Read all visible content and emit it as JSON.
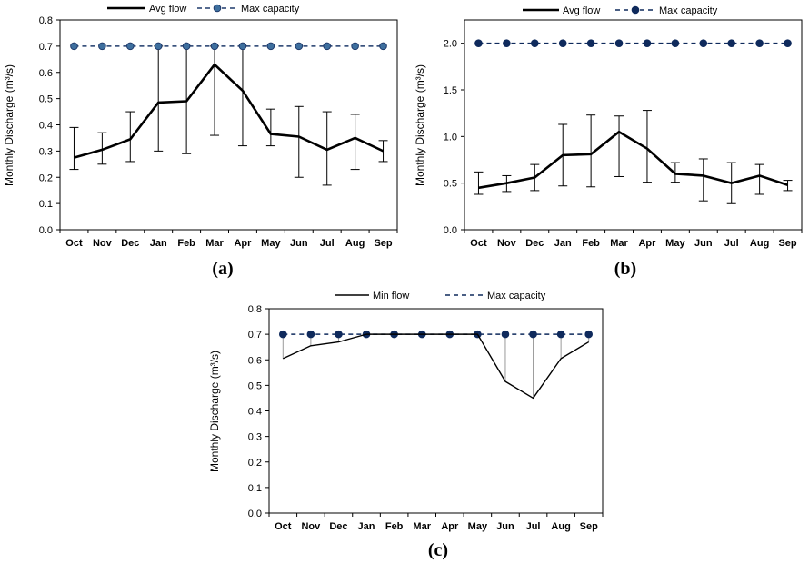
{
  "chart_data": [
    {
      "panel_label": "(a)",
      "type": "line",
      "ylabel": "Monthly Discharge (m³/s)",
      "ylim": [
        0,
        0.8
      ],
      "yticks": [
        0.0,
        0.1,
        0.2,
        0.3,
        0.4,
        0.5,
        0.6,
        0.7,
        0.8
      ],
      "ytick_labels": [
        "0.0",
        "0.1",
        "0.2",
        "0.3",
        "0.4",
        "0.5",
        "0.6",
        "0.7",
        "0.8"
      ],
      "categories": [
        "Oct",
        "Nov",
        "Dec",
        "Jan",
        "Feb",
        "Mar",
        "Apr",
        "May",
        "Jun",
        "Jul",
        "Aug",
        "Sep"
      ],
      "legend_position": "top",
      "grid": false,
      "series": [
        {
          "name": "Avg flow",
          "style": "solid-thick",
          "values": [
            0.275,
            0.305,
            0.345,
            0.485,
            0.49,
            0.63,
            0.53,
            0.365,
            0.355,
            0.305,
            0.35,
            0.3
          ],
          "err_low": [
            0.23,
            0.25,
            0.26,
            0.3,
            0.29,
            0.36,
            0.32,
            0.32,
            0.2,
            0.17,
            0.23,
            0.26
          ],
          "err_high": [
            0.39,
            0.37,
            0.45,
            0.7,
            0.7,
            0.7,
            0.7,
            0.46,
            0.47,
            0.45,
            0.44,
            0.34
          ]
        },
        {
          "name": "Max capacity",
          "style": "dashed-markers",
          "values": [
            0.7,
            0.7,
            0.7,
            0.7,
            0.7,
            0.7,
            0.7,
            0.7,
            0.7,
            0.7,
            0.7,
            0.7
          ]
        }
      ],
      "colors": {
        "line": "#000000",
        "capacity": "#1f3a6b",
        "marker_fill": "#3e6f9e"
      }
    },
    {
      "panel_label": "(b)",
      "type": "line",
      "ylabel": "Monthly Discharge (m³/s)",
      "ylim": [
        0,
        2.25
      ],
      "yticks": [
        0.0,
        0.5,
        1.0,
        1.5,
        2.0
      ],
      "ytick_labels": [
        "0.0",
        "0.5",
        "1.0",
        "1.5",
        "2.0"
      ],
      "categories": [
        "Oct",
        "Nov",
        "Dec",
        "Jan",
        "Feb",
        "Mar",
        "Apr",
        "May",
        "Jun",
        "Jul",
        "Aug",
        "Sep"
      ],
      "legend_position": "top",
      "grid": false,
      "series": [
        {
          "name": "Avg flow",
          "style": "solid-thick",
          "values": [
            0.45,
            0.5,
            0.56,
            0.8,
            0.81,
            1.05,
            0.87,
            0.6,
            0.58,
            0.5,
            0.58,
            0.48
          ],
          "err_low": [
            0.38,
            0.41,
            0.42,
            0.47,
            0.46,
            0.57,
            0.51,
            0.51,
            0.31,
            0.28,
            0.38,
            0.42
          ],
          "err_high": [
            0.62,
            0.58,
            0.7,
            1.13,
            1.23,
            1.22,
            1.28,
            0.72,
            0.76,
            0.72,
            0.7,
            0.53
          ]
        },
        {
          "name": "Max capacity",
          "style": "dashed-markers",
          "values": [
            2.0,
            2.0,
            2.0,
            2.0,
            2.0,
            2.0,
            2.0,
            2.0,
            2.0,
            2.0,
            2.0,
            2.0
          ]
        }
      ],
      "colors": {
        "line": "#000000",
        "capacity": "#0f2a5c",
        "marker_fill": "#0f2a5c"
      }
    },
    {
      "panel_label": "(c)",
      "type": "line",
      "ylabel": "Monthly Discharge (m³/s)",
      "ylim": [
        0,
        0.8
      ],
      "yticks": [
        0.0,
        0.1,
        0.2,
        0.3,
        0.4,
        0.5,
        0.6,
        0.7,
        0.8
      ],
      "ytick_labels": [
        "0.0",
        "0.1",
        "0.2",
        "0.3",
        "0.4",
        "0.5",
        "0.6",
        "0.7",
        "0.8"
      ],
      "categories": [
        "Oct",
        "Nov",
        "Dec",
        "Jan",
        "Feb",
        "Mar",
        "Apr",
        "May",
        "Jun",
        "Jul",
        "Aug",
        "Sep"
      ],
      "legend_position": "top",
      "grid": false,
      "series": [
        {
          "name": "Min flow",
          "style": "solid-thin",
          "values": [
            0.605,
            0.655,
            0.67,
            0.7,
            0.7,
            0.7,
            0.7,
            0.7,
            0.515,
            0.45,
            0.605,
            0.67
          ]
        },
        {
          "name": "Max capacity",
          "style": "dashed-markers",
          "values": [
            0.7,
            0.7,
            0.7,
            0.7,
            0.7,
            0.7,
            0.7,
            0.7,
            0.7,
            0.7,
            0.7,
            0.7
          ]
        }
      ],
      "drop_lines": true,
      "colors": {
        "line": "#000000",
        "capacity": "#0f2a5c",
        "marker_fill": "#0f2a5c",
        "drop_line": "#9a9a9a"
      }
    }
  ]
}
